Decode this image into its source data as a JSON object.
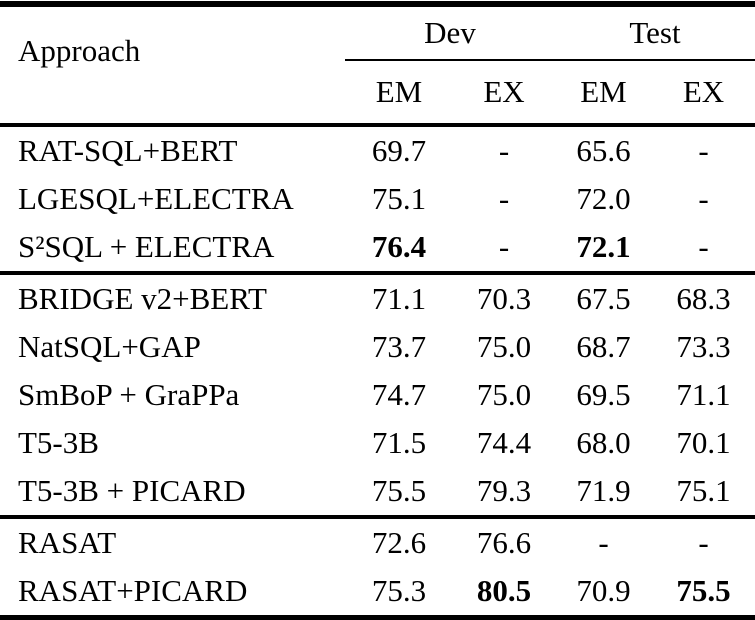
{
  "table": {
    "header": {
      "approach_label": "Approach",
      "groups": [
        {
          "label": "Dev",
          "subcols": [
            "EM",
            "EX"
          ]
        },
        {
          "label": "Test",
          "subcols": [
            "EM",
            "EX"
          ]
        }
      ]
    },
    "groups": [
      {
        "rows": [
          {
            "approach": "RAT-SQL+BERT",
            "cells": [
              {
                "text": "69.7"
              },
              {
                "text": "-"
              },
              {
                "text": "65.6"
              },
              {
                "text": "-"
              }
            ]
          },
          {
            "approach": "LGESQL+ELECTRA",
            "cells": [
              {
                "text": "75.1"
              },
              {
                "text": "-"
              },
              {
                "text": "72.0"
              },
              {
                "text": "-"
              }
            ]
          },
          {
            "approach": "S²SQL + ELECTRA",
            "cells": [
              {
                "text": "76.4",
                "bold": true
              },
              {
                "text": "-"
              },
              {
                "text": "72.1",
                "bold": true
              },
              {
                "text": "-"
              }
            ]
          }
        ]
      },
      {
        "rows": [
          {
            "approach": "BRIDGE v2+BERT",
            "cells": [
              {
                "text": "71.1"
              },
              {
                "text": "70.3"
              },
              {
                "text": "67.5"
              },
              {
                "text": "68.3"
              }
            ]
          },
          {
            "approach": "NatSQL+GAP",
            "cells": [
              {
                "text": "73.7"
              },
              {
                "text": "75.0"
              },
              {
                "text": "68.7"
              },
              {
                "text": "73.3"
              }
            ]
          },
          {
            "approach": "SmBoP + GraPPa",
            "cells": [
              {
                "text": "74.7"
              },
              {
                "text": "75.0"
              },
              {
                "text": "69.5"
              },
              {
                "text": "71.1"
              }
            ]
          },
          {
            "approach": "T5-3B",
            "cells": [
              {
                "text": "71.5"
              },
              {
                "text": "74.4"
              },
              {
                "text": "68.0"
              },
              {
                "text": "70.1"
              }
            ]
          },
          {
            "approach": "T5-3B + PICARD",
            "cells": [
              {
                "text": "75.5"
              },
              {
                "text": "79.3"
              },
              {
                "text": "71.9"
              },
              {
                "text": "75.1"
              }
            ]
          }
        ]
      },
      {
        "rows": [
          {
            "approach": "RASAT",
            "cells": [
              {
                "text": "72.6"
              },
              {
                "text": "76.6"
              },
              {
                "text": "-"
              },
              {
                "text": "-"
              }
            ]
          },
          {
            "approach": "RASAT+PICARD",
            "cells": [
              {
                "text": "75.3"
              },
              {
                "text": "80.5",
                "bold": true
              },
              {
                "text": "70.9"
              },
              {
                "text": "75.5",
                "bold": true
              }
            ]
          }
        ]
      }
    ]
  }
}
